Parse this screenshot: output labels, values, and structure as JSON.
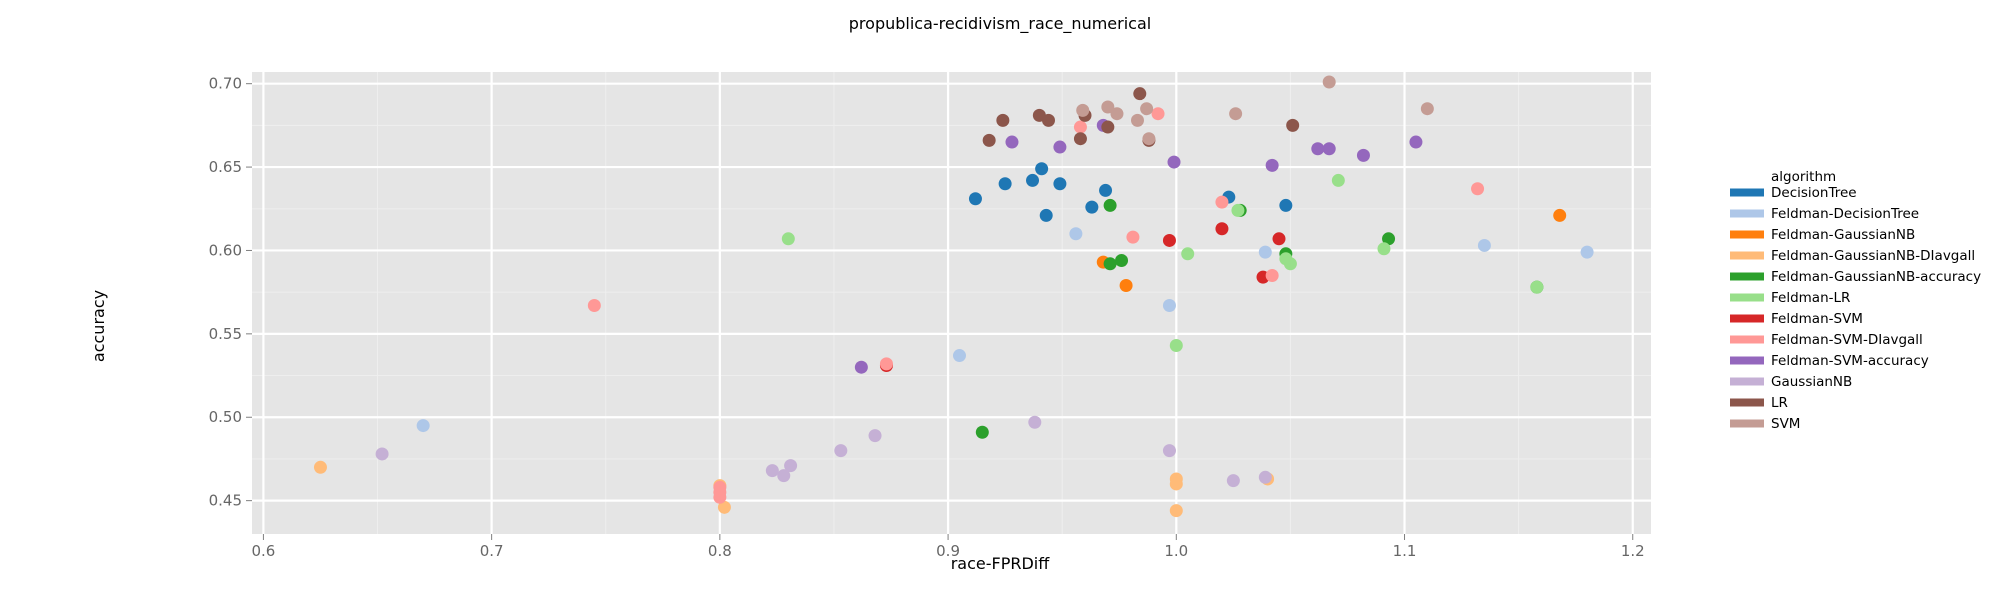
{
  "chart_data": {
    "type": "scatter",
    "title": "propublica-recidivism_race_numerical",
    "xlabel": "race-FPRDiff",
    "ylabel": "accuracy",
    "xlim": [
      0.595,
      1.208
    ],
    "ylim": [
      0.43,
      0.707
    ],
    "xticks": [
      0.6,
      0.7,
      0.8,
      0.9,
      1.0,
      1.1,
      1.2
    ],
    "xtick_labels": [
      "0.6",
      "0.7",
      "0.8",
      "0.9",
      "1.0",
      "1.1",
      "1.2"
    ],
    "yticks": [
      0.45,
      0.5,
      0.55,
      0.6,
      0.65,
      0.7
    ],
    "ytick_labels": [
      "0.45",
      "0.50",
      "0.55",
      "0.60",
      "0.65",
      "0.70"
    ],
    "grid": true,
    "legend_title": "algorithm",
    "legend_position": "right",
    "background_color": "#e5e5e5",
    "series": [
      {
        "name": "DecisionTree",
        "color": "#1f77b4",
        "points": [
          [
            0.912,
            0.631
          ],
          [
            0.925,
            0.64
          ],
          [
            0.937,
            0.642
          ],
          [
            0.941,
            0.649
          ],
          [
            0.943,
            0.621
          ],
          [
            0.949,
            0.64
          ],
          [
            0.963,
            0.626
          ],
          [
            0.969,
            0.636
          ],
          [
            1.023,
            0.632
          ],
          [
            1.048,
            0.627
          ]
        ]
      },
      {
        "name": "Feldman-DecisionTree",
        "color": "#aec7e8",
        "points": [
          [
            0.67,
            0.495
          ],
          [
            0.905,
            0.537
          ],
          [
            0.956,
            0.61
          ],
          [
            0.997,
            0.567
          ],
          [
            1.039,
            0.599
          ],
          [
            1.135,
            0.603
          ],
          [
            1.18,
            0.599
          ]
        ]
      },
      {
        "name": "Feldman-GaussianNB",
        "color": "#ff7f0e",
        "points": [
          [
            0.968,
            0.593
          ],
          [
            0.978,
            0.579
          ],
          [
            1.168,
            0.621
          ]
        ]
      },
      {
        "name": "Feldman-GaussianNB-DIavgall",
        "color": "#ffbb78",
        "points": [
          [
            0.625,
            0.47
          ],
          [
            0.8,
            0.459
          ],
          [
            0.802,
            0.446
          ],
          [
            1.0,
            0.444
          ],
          [
            1.0,
            0.463
          ],
          [
            1.0,
            0.46
          ],
          [
            1.04,
            0.463
          ]
        ]
      },
      {
        "name": "Feldman-GaussianNB-accuracy",
        "color": "#2ca02c",
        "points": [
          [
            0.915,
            0.491
          ],
          [
            0.971,
            0.592
          ],
          [
            0.971,
            0.627
          ],
          [
            0.976,
            0.594
          ],
          [
            1.028,
            0.624
          ],
          [
            1.048,
            0.598
          ],
          [
            1.093,
            0.607
          ],
          [
            1.158,
            0.578
          ]
        ]
      },
      {
        "name": "Feldman-LR",
        "color": "#98df8a",
        "points": [
          [
            0.83,
            0.607
          ],
          [
            1.0,
            0.543
          ],
          [
            1.005,
            0.598
          ],
          [
            1.027,
            0.624
          ],
          [
            1.048,
            0.595
          ],
          [
            1.05,
            0.592
          ],
          [
            1.071,
            0.642
          ],
          [
            1.091,
            0.601
          ],
          [
            1.158,
            0.578
          ]
        ]
      },
      {
        "name": "Feldman-SVM",
        "color": "#d62728",
        "points": [
          [
            0.873,
            0.531
          ],
          [
            0.997,
            0.606
          ],
          [
            1.02,
            0.613
          ],
          [
            1.038,
            0.584
          ],
          [
            1.045,
            0.607
          ]
        ]
      },
      {
        "name": "Feldman-SVM-DIavgall",
        "color": "#ff9896",
        "points": [
          [
            0.745,
            0.567
          ],
          [
            0.8,
            0.458
          ],
          [
            0.8,
            0.455
          ],
          [
            0.8,
            0.452
          ],
          [
            0.873,
            0.532
          ],
          [
            0.958,
            0.674
          ],
          [
            0.981,
            0.608
          ],
          [
            0.992,
            0.682
          ],
          [
            1.02,
            0.629
          ],
          [
            1.042,
            0.585
          ],
          [
            1.132,
            0.637
          ]
        ]
      },
      {
        "name": "Feldman-SVM-accuracy",
        "color": "#9467bd",
        "points": [
          [
            0.862,
            0.53
          ],
          [
            0.928,
            0.665
          ],
          [
            0.949,
            0.662
          ],
          [
            0.968,
            0.675
          ],
          [
            0.999,
            0.653
          ],
          [
            1.042,
            0.651
          ],
          [
            1.062,
            0.661
          ],
          [
            1.067,
            0.661
          ],
          [
            1.082,
            0.657
          ],
          [
            1.105,
            0.665
          ]
        ]
      },
      {
        "name": "GaussianNB",
        "color": "#c5b0d5",
        "points": [
          [
            0.652,
            0.478
          ],
          [
            0.823,
            0.468
          ],
          [
            0.828,
            0.465
          ],
          [
            0.831,
            0.471
          ],
          [
            0.853,
            0.48
          ],
          [
            0.868,
            0.489
          ],
          [
            0.938,
            0.497
          ],
          [
            0.997,
            0.48
          ],
          [
            1.025,
            0.462
          ],
          [
            1.039,
            0.464
          ]
        ]
      },
      {
        "name": "LR",
        "color": "#8c564b",
        "points": [
          [
            0.918,
            0.666
          ],
          [
            0.924,
            0.678
          ],
          [
            0.94,
            0.681
          ],
          [
            0.944,
            0.678
          ],
          [
            0.958,
            0.667
          ],
          [
            0.96,
            0.681
          ],
          [
            0.97,
            0.674
          ],
          [
            0.984,
            0.694
          ],
          [
            0.988,
            0.666
          ],
          [
            1.051,
            0.675
          ]
        ]
      },
      {
        "name": "SVM",
        "color": "#c49c94",
        "points": [
          [
            0.959,
            0.684
          ],
          [
            0.97,
            0.686
          ],
          [
            0.974,
            0.682
          ],
          [
            0.983,
            0.678
          ],
          [
            0.987,
            0.685
          ],
          [
            0.988,
            0.667
          ],
          [
            1.026,
            0.682
          ],
          [
            1.067,
            0.701
          ],
          [
            1.11,
            0.685
          ]
        ]
      }
    ]
  }
}
